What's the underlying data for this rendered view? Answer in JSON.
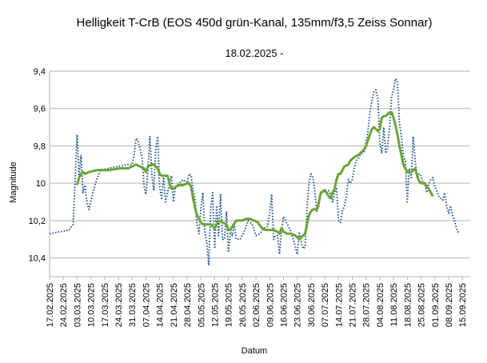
{
  "chart_data": {
    "type": "line",
    "title": "Helligkeit T-CrB (EOS 450d grün-Kanal, 135mm/f3,5 Zeiss Sonnar)",
    "subtitle": "18.02.2025 -",
    "xlabel": "Datum",
    "ylabel": "Magnitude",
    "y_inverted": true,
    "ylim": [
      9.4,
      10.5
    ],
    "y_ticks": [
      "9,4",
      "9,6",
      "9,8",
      "10",
      "10,2",
      "10,4"
    ],
    "y_tick_values": [
      9.4,
      9.6,
      9.8,
      10.0,
      10.2,
      10.4
    ],
    "grid": "horizontal",
    "x_ticks": [
      "17.02.2025",
      "24.02.2025",
      "03.03.2025",
      "10.03.2025",
      "17.03.2025",
      "24.03.2025",
      "31.03.2025",
      "07.04.2025",
      "14.04.2025",
      "21.04.2025",
      "28.04.2025",
      "05.05.2025",
      "12.05.2025",
      "19.05.2025",
      "26.05.2025",
      "02.06.2025",
      "09.06.2025",
      "16.06.2025",
      "23.06.2025",
      "30.06.2025",
      "07.07.2025",
      "14.07.2025",
      "21.07.2025",
      "28.07.2025",
      "04.08.2025",
      "11.08.2025",
      "18.08.2025",
      "25.08.2025",
      "01.09.2025",
      "08.09.2025",
      "15.09.2025"
    ],
    "series": [
      {
        "style": "dotted",
        "color": "#2e5f91",
        "points": [
          [
            0,
            10.27
          ],
          [
            5,
            10.26
          ],
          [
            10,
            10.25
          ],
          [
            12,
            10.22
          ],
          [
            13,
            9.98
          ],
          [
            14,
            9.74
          ],
          [
            15,
            9.96
          ],
          [
            16,
            9.85
          ],
          [
            17,
            10.05
          ],
          [
            18,
            10.01
          ],
          [
            19,
            10.1
          ],
          [
            20,
            10.14
          ],
          [
            22,
            10.05
          ],
          [
            24,
            9.98
          ],
          [
            26,
            9.93
          ],
          [
            30,
            9.92
          ],
          [
            35,
            9.91
          ],
          [
            40,
            9.9
          ],
          [
            42,
            9.9
          ],
          [
            43,
            9.85
          ],
          [
            44,
            9.76
          ],
          [
            45,
            9.77
          ],
          [
            47,
            9.86
          ],
          [
            48,
            10.01
          ],
          [
            49,
            10.06
          ],
          [
            50,
            9.94
          ],
          [
            51,
            9.75
          ],
          [
            52,
            9.95
          ],
          [
            53,
            10.04
          ],
          [
            54,
            9.82
          ],
          [
            55,
            9.75
          ],
          [
            56,
            10.02
          ],
          [
            57,
            10.08
          ],
          [
            58,
            9.96
          ],
          [
            59,
            10.1
          ],
          [
            60,
            10.05
          ],
          [
            62,
            9.96
          ],
          [
            63,
            10.1
          ],
          [
            64,
            10.02
          ],
          [
            66,
            10.0
          ],
          [
            68,
            9.98
          ],
          [
            70,
            10.0
          ],
          [
            71,
            9.95
          ],
          [
            72,
            9.96
          ],
          [
            73,
            10.04
          ],
          [
            74,
            10.08
          ],
          [
            75,
            10.22
          ],
          [
            76,
            10.27
          ],
          [
            77,
            10.13
          ],
          [
            78,
            10.05
          ],
          [
            79,
            10.26
          ],
          [
            80,
            10.32
          ],
          [
            81,
            10.44
          ],
          [
            82,
            10.13
          ],
          [
            83,
            10.05
          ],
          [
            84,
            10.35
          ],
          [
            85,
            10.12
          ],
          [
            86,
            10.28
          ],
          [
            87,
            10.06
          ],
          [
            88,
            10.3
          ],
          [
            89,
            10.3
          ],
          [
            90,
            10.15
          ],
          [
            91,
            10.37
          ],
          [
            92,
            10.26
          ],
          [
            93,
            10.28
          ],
          [
            94,
            10.22
          ],
          [
            95,
            10.3
          ],
          [
            97,
            10.3
          ],
          [
            99,
            10.26
          ],
          [
            101,
            10.2
          ],
          [
            103,
            10.22
          ],
          [
            105,
            10.28
          ],
          [
            107,
            10.27
          ],
          [
            109,
            10.24
          ],
          [
            111,
            10.23
          ],
          [
            112,
            10.16
          ],
          [
            113,
            10.06
          ],
          [
            114,
            10.3
          ],
          [
            115,
            10.28
          ],
          [
            116,
            10.28
          ],
          [
            117,
            10.38
          ],
          [
            118,
            10.26
          ],
          [
            119,
            10.18
          ],
          [
            120,
            10.2
          ],
          [
            122,
            10.24
          ],
          [
            124,
            10.3
          ],
          [
            125,
            10.34
          ],
          [
            126,
            10.38
          ],
          [
            127,
            10.26
          ],
          [
            128,
            10.32
          ],
          [
            129,
            10.35
          ],
          [
            130,
            10.34
          ],
          [
            131,
            10.13
          ],
          [
            132,
            10.0
          ],
          [
            133,
            9.95
          ],
          [
            134,
            9.97
          ],
          [
            135,
            10.05
          ],
          [
            136,
            10.15
          ],
          [
            137,
            10.12
          ],
          [
            138,
            10.05
          ],
          [
            140,
            10.03
          ],
          [
            141,
            10.05
          ],
          [
            142,
            10.04
          ],
          [
            143,
            10.06
          ],
          [
            144,
            10.1
          ],
          [
            145,
            10.05
          ],
          [
            146,
            10.03
          ],
          [
            147,
            10.2
          ],
          [
            148,
            10.21
          ],
          [
            149,
            10.15
          ],
          [
            150,
            10.12
          ],
          [
            151,
            10.07
          ],
          [
            152,
            9.98
          ],
          [
            153,
            10.0
          ],
          [
            154,
            9.98
          ],
          [
            155,
            9.92
          ],
          [
            156,
            9.88
          ],
          [
            157,
            9.87
          ],
          [
            158,
            9.85
          ],
          [
            160,
            9.83
          ],
          [
            161,
            9.78
          ],
          [
            162,
            9.72
          ],
          [
            163,
            9.62
          ],
          [
            164,
            9.56
          ],
          [
            165,
            9.51
          ],
          [
            166,
            9.5
          ],
          [
            167,
            9.55
          ],
          [
            168,
            9.78
          ],
          [
            169,
            9.84
          ],
          [
            170,
            9.7
          ],
          [
            171,
            9.84
          ],
          [
            172,
            9.8
          ],
          [
            173,
            9.7
          ],
          [
            174,
            9.54
          ],
          [
            175,
            9.5
          ],
          [
            176,
            9.44
          ],
          [
            177,
            9.46
          ],
          [
            178,
            9.68
          ],
          [
            179,
            9.75
          ],
          [
            180,
            9.86
          ],
          [
            181,
            9.88
          ],
          [
            182,
            10.1
          ],
          [
            183,
            9.92
          ],
          [
            184,
            9.97
          ],
          [
            185,
            9.75
          ],
          [
            186,
            9.88
          ],
          [
            187,
            9.97
          ],
          [
            188,
            9.95
          ],
          [
            189,
            9.96
          ],
          [
            190,
            10.0
          ],
          [
            191,
            10.01
          ],
          [
            192,
            10.05
          ],
          [
            193,
            10.0
          ],
          [
            194,
            9.98
          ],
          [
            195,
            9.97
          ],
          [
            196,
            10.02
          ],
          [
            197,
            10.04
          ],
          [
            198,
            10.07
          ],
          [
            199,
            10.08
          ],
          [
            200,
            10.09
          ],
          [
            201,
            10.05
          ],
          [
            202,
            10.12
          ],
          [
            203,
            10.16
          ],
          [
            204,
            10.12
          ],
          [
            205,
            10.17
          ],
          [
            206,
            10.2
          ],
          [
            207,
            10.24
          ],
          [
            208,
            10.27
          ]
        ]
      },
      {
        "style": "solid",
        "color": "#6aa535",
        "points": [
          [
            14,
            10.01
          ],
          [
            15,
            9.97
          ],
          [
            16,
            9.95
          ],
          [
            17,
            9.94
          ],
          [
            18,
            9.95
          ],
          [
            20,
            9.94
          ],
          [
            24,
            9.93
          ],
          [
            30,
            9.93
          ],
          [
            36,
            9.92
          ],
          [
            40,
            9.92
          ],
          [
            42,
            9.91
          ],
          [
            44,
            9.9
          ],
          [
            46,
            9.91
          ],
          [
            48,
            9.92
          ],
          [
            49,
            9.94
          ],
          [
            50,
            9.91
          ],
          [
            52,
            9.9
          ],
          [
            53,
            9.9
          ],
          [
            54,
            9.91
          ],
          [
            55,
            9.92
          ],
          [
            56,
            9.95
          ],
          [
            57,
            9.96
          ],
          [
            58,
            9.96
          ],
          [
            60,
            9.96
          ],
          [
            61,
            10.0
          ],
          [
            62,
            10.03
          ],
          [
            63,
            10.03
          ],
          [
            64,
            10.02
          ],
          [
            66,
            10.01
          ],
          [
            68,
            10.01
          ],
          [
            70,
            10.0
          ],
          [
            71,
            10.0
          ],
          [
            72,
            10.02
          ],
          [
            73,
            10.08
          ],
          [
            74,
            10.13
          ],
          [
            75,
            10.17
          ],
          [
            76,
            10.19
          ],
          [
            77,
            10.21
          ],
          [
            78,
            10.22
          ],
          [
            80,
            10.22
          ],
          [
            82,
            10.22
          ],
          [
            83,
            10.23
          ],
          [
            84,
            10.24
          ],
          [
            85,
            10.22
          ],
          [
            86,
            10.2
          ],
          [
            88,
            10.21
          ],
          [
            90,
            10.22
          ],
          [
            91,
            10.25
          ],
          [
            92,
            10.25
          ],
          [
            93,
            10.23
          ],
          [
            95,
            10.2
          ],
          [
            98,
            10.2
          ],
          [
            100,
            10.19
          ],
          [
            102,
            10.19
          ],
          [
            104,
            10.2
          ],
          [
            106,
            10.21
          ],
          [
            108,
            10.24
          ],
          [
            110,
            10.25
          ],
          [
            112,
            10.25
          ],
          [
            114,
            10.25
          ],
          [
            116,
            10.26
          ],
          [
            117,
            10.27
          ],
          [
            118,
            10.24
          ],
          [
            119,
            10.26
          ],
          [
            121,
            10.27
          ],
          [
            123,
            10.27
          ],
          [
            125,
            10.28
          ],
          [
            126,
            10.29
          ],
          [
            127,
            10.3
          ],
          [
            128,
            10.29
          ],
          [
            129,
            10.28
          ],
          [
            130,
            10.27
          ],
          [
            131,
            10.22
          ],
          [
            132,
            10.17
          ],
          [
            133,
            10.15
          ],
          [
            134,
            10.14
          ],
          [
            136,
            10.14
          ],
          [
            137,
            10.1
          ],
          [
            138,
            10.05
          ],
          [
            140,
            10.04
          ],
          [
            141,
            10.05
          ],
          [
            142,
            10.07
          ],
          [
            143,
            10.08
          ],
          [
            144,
            10.05
          ],
          [
            145,
            10.03
          ],
          [
            146,
            9.98
          ],
          [
            147,
            9.95
          ],
          [
            148,
            9.95
          ],
          [
            149,
            9.93
          ],
          [
            150,
            9.91
          ],
          [
            152,
            9.9
          ],
          [
            153,
            9.88
          ],
          [
            155,
            9.86
          ],
          [
            157,
            9.85
          ],
          [
            158,
            9.84
          ],
          [
            159,
            9.83
          ],
          [
            160,
            9.82
          ],
          [
            161,
            9.8
          ],
          [
            162,
            9.77
          ],
          [
            163,
            9.74
          ],
          [
            164,
            9.71
          ],
          [
            165,
            9.7
          ],
          [
            166,
            9.71
          ],
          [
            167,
            9.72
          ],
          [
            168,
            9.71
          ],
          [
            169,
            9.65
          ],
          [
            170,
            9.64
          ],
          [
            171,
            9.64
          ],
          [
            172,
            9.63
          ],
          [
            173,
            9.62
          ],
          [
            174,
            9.62
          ],
          [
            175,
            9.65
          ],
          [
            176,
            9.69
          ],
          [
            177,
            9.74
          ],
          [
            178,
            9.8
          ],
          [
            179,
            9.85
          ],
          [
            180,
            9.9
          ],
          [
            182,
            9.94
          ],
          [
            184,
            9.94
          ],
          [
            185,
            9.93
          ],
          [
            186,
            9.92
          ],
          [
            187,
            9.96
          ],
          [
            188,
            9.99
          ],
          [
            189,
            10.0
          ],
          [
            190,
            10.0
          ],
          [
            191,
            10.0
          ],
          [
            192,
            10.02
          ],
          [
            193,
            10.03
          ],
          [
            194,
            10.05
          ],
          [
            195,
            10.07
          ]
        ]
      }
    ]
  }
}
